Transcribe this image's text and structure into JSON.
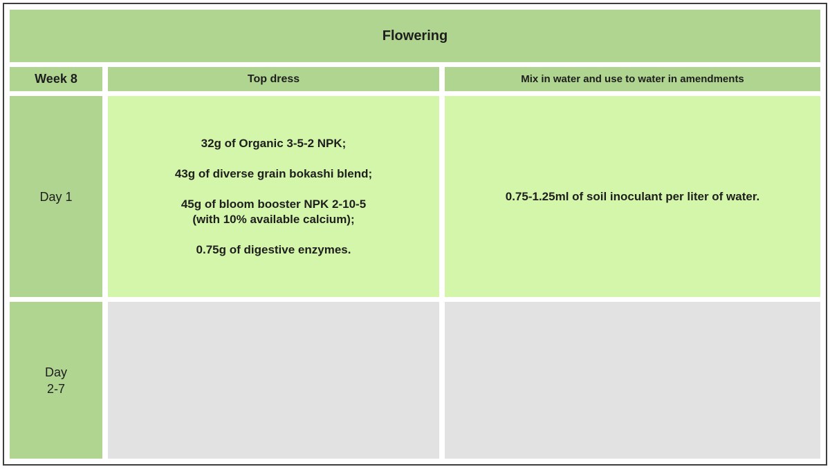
{
  "table": {
    "title": "Flowering",
    "header": {
      "week_label": "Week 8",
      "top_dress_label": "Top dress",
      "water_mix_label": "Mix in water and use to water in amendments"
    },
    "rows": [
      {
        "day_label": "Day 1",
        "top_dress_items": [
          "32g of Organic 3-5-2 NPK;",
          "43g of diverse grain bokashi blend;",
          "45g of bloom booster NPK 2-10-5\n(with 10% available calcium);",
          "0.75g of digestive enzymes."
        ],
        "water_mix": "0.75-1.25ml of soil inoculant per liter of water."
      },
      {
        "day_label": "Day\n2-7",
        "top_dress_items": [],
        "water_mix": ""
      }
    ],
    "colors": {
      "header_green": "#afd591",
      "body_light_green": "#d3f6aa",
      "empty_gray": "#e2e2e2",
      "border": "#3d3d3d",
      "text": "#1e1e1e"
    }
  }
}
